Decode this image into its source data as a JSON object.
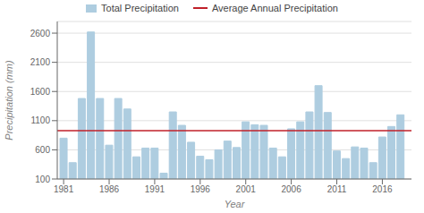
{
  "chart_data": {
    "type": "bar",
    "xlabel": "Year",
    "ylabel": "Precipitation (mm)",
    "x": [
      1981,
      1982,
      1983,
      1984,
      1985,
      1986,
      1987,
      1988,
      1989,
      1990,
      1991,
      1992,
      1993,
      1994,
      1995,
      1996,
      1997,
      1998,
      1999,
      2000,
      2001,
      2002,
      2003,
      2004,
      2005,
      2006,
      2007,
      2008,
      2009,
      2010,
      2011,
      2012,
      2013,
      2014,
      2015,
      2016,
      2017,
      2018
    ],
    "series": [
      {
        "name": "Total Precipitation",
        "color": "#aecde0",
        "values": [
          800,
          380,
          1480,
          2620,
          1480,
          680,
          1480,
          1300,
          480,
          630,
          630,
          200,
          1250,
          1020,
          730,
          490,
          430,
          600,
          750,
          640,
          1080,
          1030,
          1020,
          630,
          480,
          960,
          1080,
          1250,
          1700,
          1240,
          580,
          450,
          650,
          630,
          380,
          820,
          1000,
          1200
        ]
      }
    ],
    "average": {
      "name": "Average Annual Precipitation",
      "value": 930,
      "color": "#c0202a"
    },
    "xlim": [
      1980.3,
      2019.2
    ],
    "xticks": [
      1981,
      1986,
      1991,
      1996,
      2001,
      2006,
      2011,
      2016
    ],
    "ylim": [
      100,
      2800
    ],
    "yticks": [
      100,
      600,
      1100,
      1600,
      2100,
      2600
    ],
    "grid": true,
    "legend": "top"
  }
}
